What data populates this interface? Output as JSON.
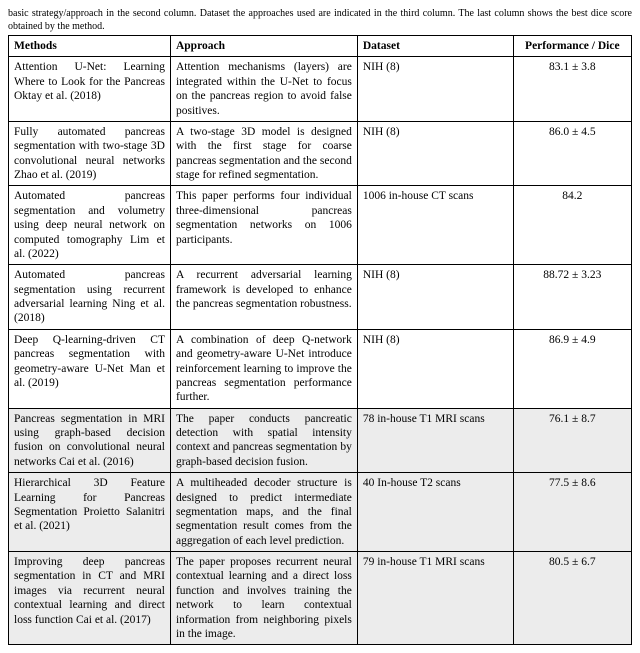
{
  "caption": "basic strategy/approach in the second column. Dataset the approaches used are indicated in the third column. The last column shows the best dice score obtained by the method.",
  "headers": {
    "methods": "Methods",
    "approach": "Approach",
    "dataset": "Dataset",
    "performance": "Performance / Dice"
  },
  "rows": [
    {
      "methods": "Attention U-Net: Learning Where to Look for the Pancreas Oktay et al. (2018)",
      "approach": "Attention mechanisms (layers) are integrated within the U-Net to focus on the pancreas region to avoid false positives.",
      "dataset": "NIH (8)",
      "performance": "83.1 ± 3.8"
    },
    {
      "methods": "Fully automated pancreas segmentation with two-stage 3D convolutional neural networks Zhao et al. (2019)",
      "approach": "A two-stage 3D model is designed with the first stage for coarse pancreas segmentation and the second stage for refined segmentation.",
      "dataset": "NIH (8)",
      "performance": "86.0 ± 4.5"
    },
    {
      "methods": "Automated pancreas segmentation and volumetry using deep neural network on computed tomography  Lim et al. (2022)",
      "approach": "This paper performs four individual three-dimensional pancreas segmentation networks on 1006 participants.",
      "dataset": "1006 in-house CT scans",
      "performance": "84.2"
    },
    {
      "methods": "Automated pancreas segmentation using recurrent adversarial learning  Ning et al. (2018)",
      "approach": "A recurrent adversarial learning framework is developed to enhance the pancreas segmentation robustness.",
      "dataset": "NIH (8)",
      "performance": "88.72 ± 3.23"
    },
    {
      "methods": "Deep Q-learning-driven CT pancreas segmentation with geometry-aware U-Net  Man et al. (2019)",
      "approach": "A combination of deep Q-network and geometry-aware U-Net introduce reinforcement learning to improve the pancreas segmentation performance further.",
      "dataset": "NIH (8)",
      "performance": "86.9 ± 4.9"
    },
    {
      "methods": "Pancreas segmentation in MRI using graph-based decision fusion on convolutional neural networks  Cai et al. (2016)",
      "approach": "The paper conducts pancreatic detection with spatial intensity context and pancreas segmentation by graph-based decision fusion.",
      "dataset": "78 in-house T1 MRI scans",
      "performance": "76.1 ± 8.7"
    },
    {
      "methods": "Hierarchical 3D Feature Learning for Pancreas Segmentation Proietto Salanitri et al. (2021)",
      "approach": "A multiheaded decoder structure is designed to predict intermediate segmentation maps, and the final segmentation result comes from the aggregation of each level prediction.",
      "dataset": "40 In-house T2 scans",
      "performance": "77.5 ± 8.6"
    },
    {
      "methods": "Improving deep pancreas segmentation in CT and MRI images via recurrent neural contextual learning and direct loss function  Cai et al. (2017)",
      "approach": "The paper proposes recurrent neural contextual learning and a direct loss function and involves training the network to learn contextual information from neighboring pixels in the image.",
      "dataset": "79 in-house T1 MRI scans",
      "performance": "80.5 ± 6.7"
    }
  ],
  "shaded_row_indices": [
    5,
    6,
    7
  ]
}
